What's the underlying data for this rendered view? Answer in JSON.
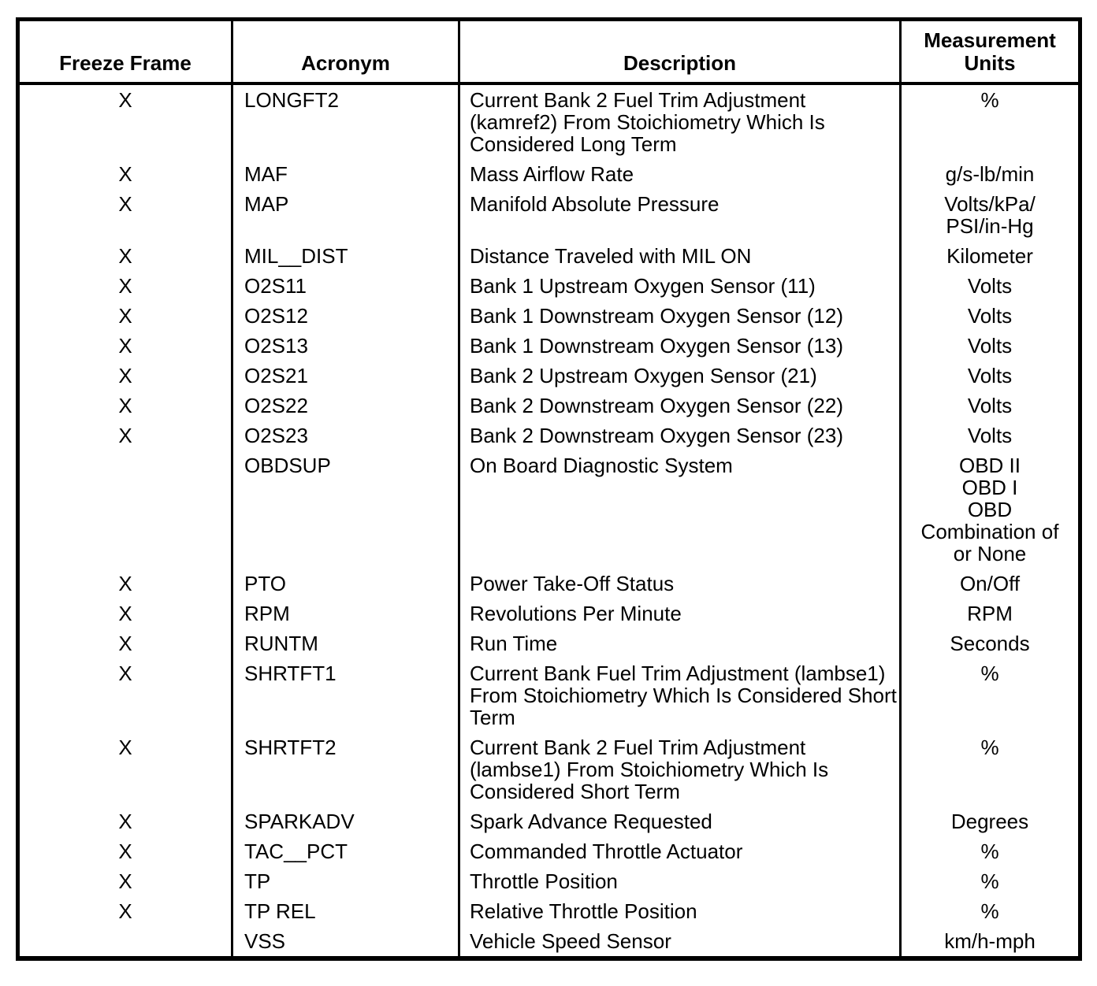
{
  "table": {
    "columns": [
      {
        "key": "freeze",
        "label": "Freeze Frame"
      },
      {
        "key": "acronym",
        "label": "Acronym"
      },
      {
        "key": "description",
        "label": "Description"
      },
      {
        "key": "units",
        "label": "Measurement\nUnits"
      }
    ],
    "rows": [
      {
        "freeze": "X",
        "acronym": "LONGFT2",
        "description": "Current Bank 2 Fuel Trim Adjustment\n(kamref2) From Stoichiometry Which Is\nConsidered Long Term",
        "units": "%"
      },
      {
        "freeze": "X",
        "acronym": "MAF",
        "description": "Mass Airflow Rate",
        "units": "g/s-lb/min"
      },
      {
        "freeze": "X",
        "acronym": "MAP",
        "description": "Manifold Absolute Pressure",
        "units": "Volts/kPa/\nPSI/in-Hg"
      },
      {
        "freeze": "X",
        "acronym": "MIL__DIST",
        "description": "Distance Traveled with MIL ON",
        "units": "Kilometer"
      },
      {
        "freeze": "X",
        "acronym": "O2S11",
        "description": "Bank 1 Upstream Oxygen Sensor (11)",
        "units": "Volts"
      },
      {
        "freeze": "X",
        "acronym": "O2S12",
        "description": "Bank 1 Downstream Oxygen Sensor (12)",
        "units": "Volts"
      },
      {
        "freeze": "X",
        "acronym": "O2S13",
        "description": "Bank 1 Downstream Oxygen Sensor (13)",
        "units": "Volts"
      },
      {
        "freeze": "X",
        "acronym": "O2S21",
        "description": "Bank 2 Upstream Oxygen Sensor (21)",
        "units": "Volts"
      },
      {
        "freeze": "X",
        "acronym": "O2S22",
        "description": "Bank 2 Downstream Oxygen Sensor (22)",
        "units": "Volts"
      },
      {
        "freeze": "X",
        "acronym": "O2S23",
        "description": "Bank 2 Downstream Oxygen Sensor (23)",
        "units": "Volts"
      },
      {
        "freeze": "",
        "acronym": "OBDSUP",
        "description": "On Board Diagnostic System",
        "units": "OBD II\nOBD I\nOBD\nCombination of\nor None"
      },
      {
        "freeze": "X",
        "acronym": "PTO",
        "description": "Power Take-Off Status",
        "units": "On/Off"
      },
      {
        "freeze": "X",
        "acronym": "RPM",
        "description": "Revolutions Per Minute",
        "units": "RPM"
      },
      {
        "freeze": "X",
        "acronym": "RUNTM",
        "description": "Run Time",
        "units": "Seconds"
      },
      {
        "freeze": "X",
        "acronym": "SHRTFT1",
        "description": "Current Bank Fuel Trim Adjustment (lambse1)\nFrom Stoichiometry Which Is Considered Short\nTerm",
        "units": "%"
      },
      {
        "freeze": "X",
        "acronym": "SHRTFT2",
        "description": "Current Bank 2 Fuel Trim Adjustment\n(lambse1) From Stoichiometry Which Is\nConsidered Short Term",
        "units": "%"
      },
      {
        "freeze": "X",
        "acronym": "SPARKADV",
        "description": "Spark Advance Requested",
        "units": "Degrees"
      },
      {
        "freeze": "X",
        "acronym": "TAC__PCT",
        "description": "Commanded Throttle Actuator",
        "units": "%"
      },
      {
        "freeze": "X",
        "acronym": "TP",
        "description": "Throttle Position",
        "units": "%"
      },
      {
        "freeze": "X",
        "acronym": "TP REL",
        "description": "Relative Throttle Position",
        "units": "%"
      },
      {
        "freeze": "",
        "acronym": "VSS",
        "description": "Vehicle Speed Sensor",
        "units": "km/h-mph"
      }
    ]
  }
}
